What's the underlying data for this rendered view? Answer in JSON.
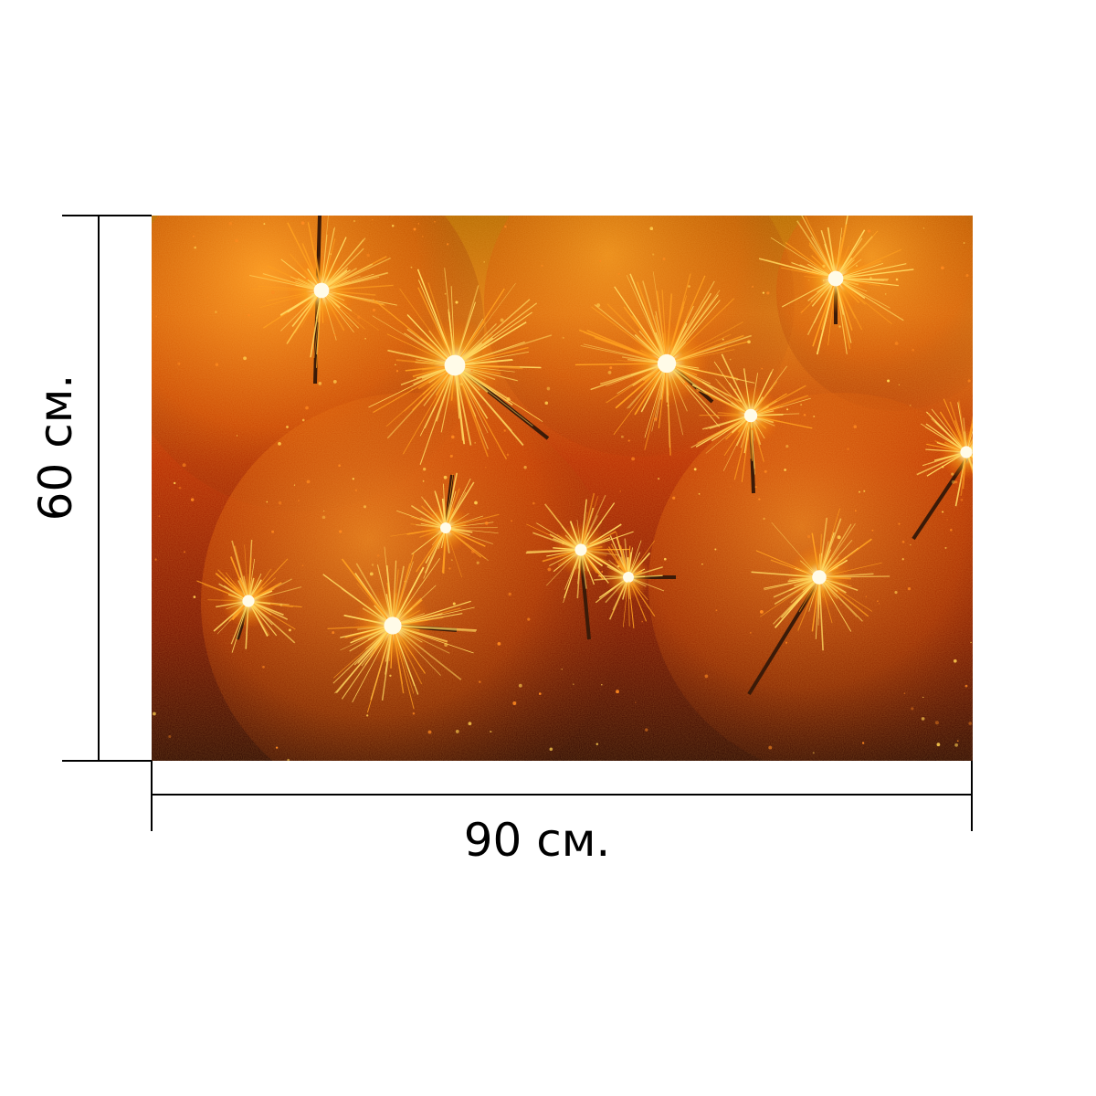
{
  "product": {
    "width_label": "90 см.",
    "height_label": "60 см."
  },
  "photo": {
    "background_colors": [
      "#2a0500",
      "#8a1a00",
      "#d94a00",
      "#ffb000",
      "#fff2b0"
    ],
    "subject": "sparklers"
  }
}
